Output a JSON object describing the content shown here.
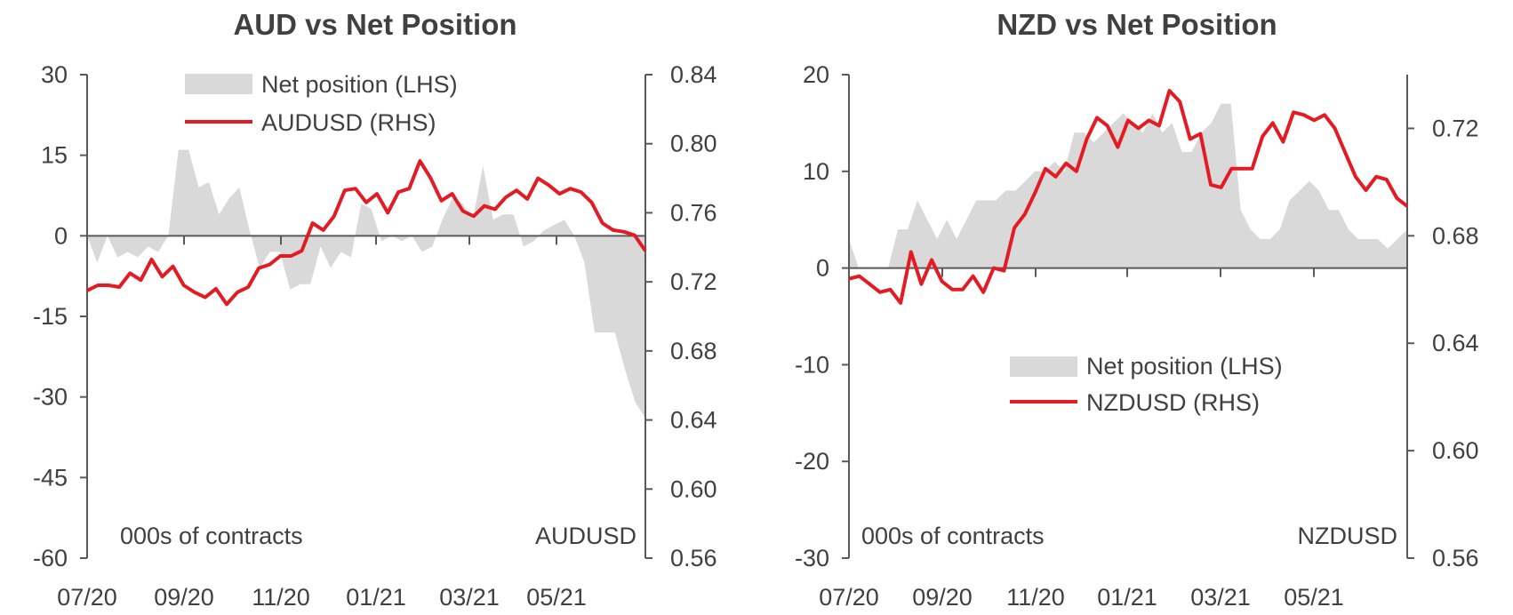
{
  "charts": [
    {
      "title": "AUD vs Net Position",
      "left_unit": "000s of contracts",
      "right_unit": "AUDUSD",
      "legend": {
        "area": "Net position (LHS)",
        "line": "AUDUSD (RHS)"
      },
      "x_ticks": [
        "07/20",
        "09/20",
        "11/20",
        "01/21",
        "03/21",
        "05/21"
      ],
      "left_ticks": [
        "30",
        "15",
        "0",
        "-15",
        "-30",
        "-45",
        "-60"
      ],
      "right_ticks": [
        "0.84",
        "0.80",
        "0.76",
        "0.72",
        "0.68",
        "0.64",
        "0.60",
        "0.56"
      ]
    },
    {
      "title": "NZD vs Net Position",
      "left_unit": "000s of contracts",
      "right_unit": "NZDUSD",
      "legend": {
        "area": "Net position (LHS)",
        "line": "NZDUSD (RHS)"
      },
      "x_ticks": [
        "07/20",
        "09/20",
        "11/20",
        "01/21",
        "03/21",
        "05/21"
      ],
      "left_ticks": [
        "20",
        "10",
        "0",
        "-10",
        "-20",
        "-30"
      ],
      "right_ticks": [
        "0.72",
        "0.68",
        "0.64",
        "0.60",
        "0.56"
      ]
    }
  ],
  "chart_data": [
    {
      "type": "area+line",
      "title": "AUD vs Net Position",
      "x_ticks": [
        "07/20",
        "09/20",
        "11/20",
        "01/21",
        "03/21",
        "05/21"
      ],
      "ylim_left": [
        -60,
        30
      ],
      "ylim_right": [
        0.56,
        0.84
      ],
      "series": [
        {
          "name": "Net position (LHS)",
          "axis": "left",
          "type": "area",
          "color": "#d9d9d9",
          "values": [
            0,
            -5,
            0,
            -4,
            -3,
            -4,
            -2,
            -3,
            0,
            16,
            16,
            9,
            10,
            4,
            7,
            9,
            1,
            -6,
            -3,
            -3,
            -10,
            -9,
            -9,
            -2,
            -6,
            -3,
            -4,
            6,
            5,
            -1,
            0,
            -1,
            0,
            -3,
            -2,
            3,
            7,
            6,
            3,
            13,
            3,
            4,
            4,
            -2,
            -1,
            1,
            2,
            3,
            0,
            -5,
            -18,
            -18,
            -18,
            -25,
            -31,
            -34
          ]
        },
        {
          "name": "AUDUSD (RHS)",
          "axis": "right",
          "type": "line",
          "color": "#e31b23",
          "values": [
            0.715,
            0.718,
            0.718,
            0.717,
            0.725,
            0.721,
            0.733,
            0.723,
            0.729,
            0.718,
            0.714,
            0.711,
            0.716,
            0.707,
            0.714,
            0.717,
            0.728,
            0.73,
            0.735,
            0.735,
            0.738,
            0.754,
            0.75,
            0.758,
            0.773,
            0.774,
            0.766,
            0.771,
            0.76,
            0.772,
            0.774,
            0.79,
            0.78,
            0.767,
            0.771,
            0.761,
            0.758,
            0.764,
            0.762,
            0.769,
            0.773,
            0.768,
            0.78,
            0.776,
            0.771,
            0.774,
            0.772,
            0.766,
            0.754,
            0.75,
            0.749,
            0.747,
            0.738
          ]
        }
      ]
    },
    {
      "type": "area+line",
      "title": "NZD vs Net Position",
      "x_ticks": [
        "07/20",
        "09/20",
        "11/20",
        "01/21",
        "03/21",
        "05/21"
      ],
      "ylim_left": [
        -30,
        20
      ],
      "ylim_right": [
        0.56,
        0.74
      ],
      "series": [
        {
          "name": "Net position (LHS)",
          "axis": "left",
          "type": "area",
          "color": "#d9d9d9",
          "values": [
            3,
            0,
            0,
            0,
            0,
            4,
            4,
            7,
            5,
            3,
            5,
            3,
            5,
            7,
            7,
            7,
            8,
            8,
            9,
            10,
            10,
            11,
            10,
            14,
            14,
            13,
            14,
            15,
            16,
            15,
            14,
            16,
            14,
            15,
            12,
            12,
            14,
            15,
            17,
            17,
            6,
            4,
            3,
            3,
            4,
            7,
            8,
            9,
            8,
            6,
            6,
            4,
            3,
            3,
            3,
            2,
            3,
            4
          ]
        },
        {
          "name": "NZDUSD (RHS)",
          "axis": "right",
          "type": "line",
          "color": "#e31b23",
          "values": [
            0.664,
            0.665,
            0.662,
            0.659,
            0.66,
            0.655,
            0.674,
            0.662,
            0.671,
            0.663,
            0.66,
            0.66,
            0.665,
            0.659,
            0.668,
            0.667,
            0.683,
            0.688,
            0.696,
            0.705,
            0.702,
            0.707,
            0.704,
            0.716,
            0.724,
            0.721,
            0.713,
            0.723,
            0.72,
            0.723,
            0.721,
            0.734,
            0.73,
            0.716,
            0.718,
            0.699,
            0.698,
            0.705,
            0.705,
            0.705,
            0.717,
            0.722,
            0.715,
            0.726,
            0.725,
            0.723,
            0.725,
            0.72,
            0.711,
            0.702,
            0.697,
            0.702,
            0.701,
            0.694,
            0.691
          ]
        }
      ]
    }
  ]
}
